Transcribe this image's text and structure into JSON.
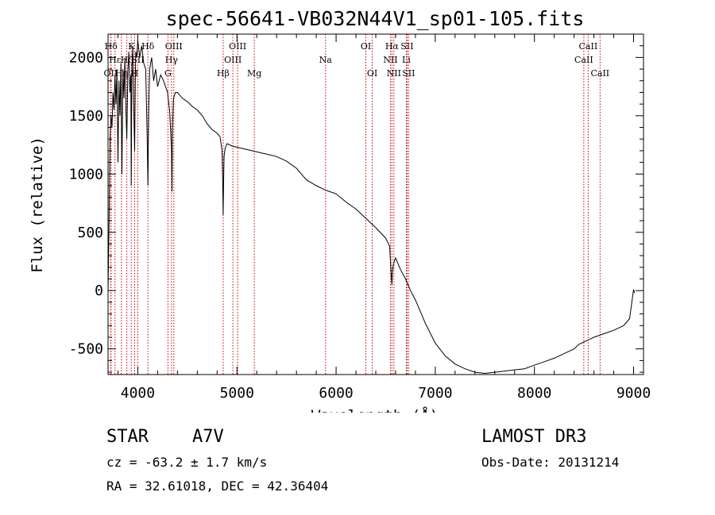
{
  "chart_data": {
    "type": "line",
    "title": "spec-56641-VB032N44V1_sp01-105.fits",
    "xlabel": "Wavelength (Å)",
    "ylabel": "Flux (relative)",
    "xlim": [
      3700,
      9100
    ],
    "ylim": [
      -720,
      2200
    ],
    "xticks": [
      4000,
      5000,
      6000,
      7000,
      8000,
      9000
    ],
    "xtick_labels": [
      "4000",
      "5000",
      "6000",
      "7000",
      "8000",
      "9000"
    ],
    "yticks": [
      -500,
      0,
      500,
      1000,
      1500,
      2000
    ],
    "ytick_labels": [
      "-500",
      "0",
      "500",
      "1000",
      "1500",
      "2000"
    ],
    "line_color": "#000000",
    "marker_color": "#cc0000",
    "series": [
      {
        "name": "flux",
        "x": [
          3700,
          3710,
          3720,
          3730,
          3740,
          3750,
          3760,
          3770,
          3780,
          3790,
          3800,
          3810,
          3820,
          3830,
          3840,
          3850,
          3860,
          3870,
          3880,
          3889,
          3895,
          3900,
          3910,
          3920,
          3930,
          3934,
          3940,
          3950,
          3960,
          3968,
          3975,
          3980,
          3990,
          4000,
          4020,
          4040,
          4060,
          4080,
          4095,
          4102,
          4110,
          4120,
          4140,
          4160,
          4180,
          4200,
          4230,
          4260,
          4280,
          4300,
          4320,
          4330,
          4340,
          4345,
          4350,
          4360,
          4380,
          4400,
          4450,
          4500,
          4550,
          4600,
          4650,
          4700,
          4750,
          4800,
          4830,
          4850,
          4856,
          4861,
          4866,
          4870,
          4880,
          4900,
          4950,
          5000,
          5050,
          5100,
          5150,
          5200,
          5250,
          5300,
          5400,
          5500,
          5600,
          5700,
          5800,
          5900,
          6000,
          6100,
          6200,
          6300,
          6400,
          6500,
          6540,
          6555,
          6563,
          6570,
          6585,
          6600,
          6650,
          6700,
          6750,
          6800,
          6850,
          6900,
          7000,
          7100,
          7200,
          7300,
          7400,
          7500,
          7600,
          7700,
          7800,
          7900,
          8000,
          8100,
          8200,
          8300,
          8400,
          8450,
          8500,
          8550,
          8600,
          8700,
          8800,
          8900,
          8960,
          8990,
          9000,
          9010
        ],
        "values": [
          -5,
          550,
          1300,
          1500,
          1400,
          1700,
          1550,
          1850,
          1600,
          1900,
          1100,
          1800,
          1500,
          1950,
          1000,
          1900,
          1650,
          2000,
          1550,
          1300,
          1600,
          1900,
          2050,
          1700,
          1850,
          900,
          1900,
          2100,
          1500,
          1200,
          1800,
          2050,
          2000,
          2150,
          2000,
          2100,
          1950,
          1900,
          1300,
          900,
          1550,
          1900,
          2000,
          1800,
          1900,
          1750,
          1850,
          1800,
          1750,
          1700,
          1550,
          1400,
          1200,
          850,
          1400,
          1650,
          1700,
          1700,
          1650,
          1620,
          1580,
          1550,
          1500,
          1430,
          1380,
          1350,
          1320,
          1200,
          950,
          650,
          950,
          1150,
          1220,
          1260,
          1240,
          1230,
          1220,
          1210,
          1200,
          1190,
          1180,
          1170,
          1150,
          1110,
          1050,
          950,
          900,
          860,
          830,
          760,
          700,
          620,
          540,
          450,
          380,
          150,
          50,
          180,
          250,
          280,
          180,
          100,
          0,
          -80,
          -180,
          -280,
          -450,
          -560,
          -630,
          -670,
          -700,
          -710,
          -700,
          -690,
          -680,
          -670,
          -640,
          -610,
          -580,
          -540,
          -500,
          -460,
          -440,
          -420,
          -400,
          -370,
          -340,
          -300,
          -240,
          -50,
          10,
          -20
        ]
      }
    ],
    "line_markers": [
      {
        "label": "Hδ",
        "x": 3730,
        "row": 1
      },
      {
        "label": "OII",
        "x": 3727,
        "row": 3
      },
      {
        "label": "Hε",
        "x": 3770,
        "row": 2
      },
      {
        "label": "Hη",
        "x": 3835,
        "row": 3
      },
      {
        "label": "Hζ",
        "x": 3889,
        "row": 2
      },
      {
        "label": "K",
        "x": 3934,
        "row": 1
      },
      {
        "label": "H",
        "x": 3968,
        "row": 3
      },
      {
        "label": "SII",
        "x": 4000,
        "row": 2
      },
      {
        "label": "Hδ",
        "x": 4102,
        "row": 1
      },
      {
        "label": "OIII",
        "x": 4363,
        "row": 1
      },
      {
        "label": "Hγ",
        "x": 4340,
        "row": 2
      },
      {
        "label": "G",
        "x": 4304,
        "row": 3
      },
      {
        "label": "Hβ",
        "x": 4861,
        "row": 3
      },
      {
        "label": "OIII",
        "x": 5007,
        "row": 1
      },
      {
        "label": "OIII",
        "x": 4959,
        "row": 2
      },
      {
        "label": "Mg",
        "x": 5175,
        "row": 3
      },
      {
        "label": "Na",
        "x": 5893,
        "row": 2
      },
      {
        "label": "OI",
        "x": 6300,
        "row": 1
      },
      {
        "label": "OI",
        "x": 6364,
        "row": 3
      },
      {
        "label": "Hα",
        "x": 6563,
        "row": 1
      },
      {
        "label": "NII",
        "x": 6548,
        "row": 2
      },
      {
        "label": "NII",
        "x": 6583,
        "row": 3
      },
      {
        "label": "SII",
        "x": 6716,
        "row": 1
      },
      {
        "label": "Li",
        "x": 6708,
        "row": 2
      },
      {
        "label": "SII",
        "x": 6731,
        "row": 3
      },
      {
        "label": "CaII",
        "x": 8542,
        "row": 1
      },
      {
        "label": "CaII",
        "x": 8498,
        "row": 2
      },
      {
        "label": "CaII",
        "x": 8662,
        "row": 3
      }
    ]
  },
  "info": {
    "object_class": "STAR",
    "subclass": "A7V",
    "survey": "LAMOST DR3",
    "cz": "cz = -63.2 ± 1.7 km/s",
    "obs_date": "Obs-Date: 20131214",
    "coords": "RA =  32.61018, DEC =  42.36404"
  }
}
